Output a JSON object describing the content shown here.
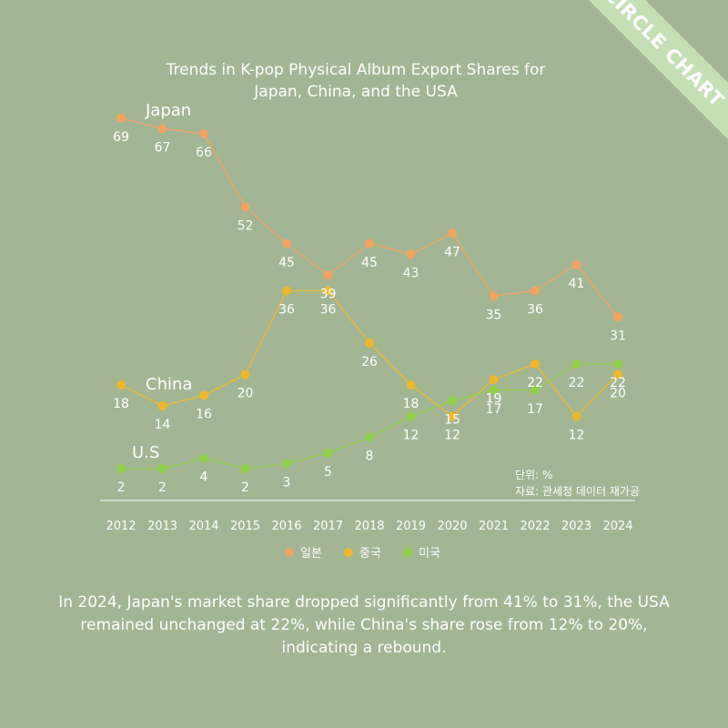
{
  "branding": {
    "ribbon_text": "CIRCLE CHART",
    "ribbon_color": "#c6e0b6"
  },
  "chart_data": {
    "type": "line",
    "title_lines": [
      "Trends in K-pop Physical Album Export Shares for",
      "Japan, China, and the USA"
    ],
    "x": [
      "2012",
      "2013",
      "2014",
      "2015",
      "2016",
      "2017",
      "2018",
      "2019",
      "2020",
      "2021",
      "2022",
      "2023",
      "2024"
    ],
    "ylim": [
      0,
      72
    ],
    "grid": false,
    "legend_position": "bottom",
    "series": [
      {
        "name": "일본",
        "inline_label": "Japan",
        "color": "#f4a361",
        "values": [
          69,
          67,
          66,
          52,
          45,
          39,
          45,
          43,
          47,
          35,
          36,
          41,
          31
        ]
      },
      {
        "name": "중국",
        "inline_label": "China",
        "color": "#f1b72f",
        "values": [
          18,
          14,
          16,
          20,
          36,
          36,
          26,
          18,
          12,
          19,
          22,
          12,
          20
        ]
      },
      {
        "name": "미국",
        "inline_label": "U.S",
        "color": "#8fd14a",
        "values": [
          2,
          2,
          4,
          2,
          3,
          5,
          8,
          12,
          15,
          17,
          17,
          22,
          22
        ]
      }
    ],
    "notes": [
      "단위: %",
      "자료: 관세청 데이터 재가공"
    ]
  },
  "caption_lines": [
    "In 2024, Japan's market share dropped significantly from 41% to 31%, the USA",
    "remained unchanged at 22%, while China's share rose from 12% to 20%,",
    "indicating a rebound."
  ]
}
